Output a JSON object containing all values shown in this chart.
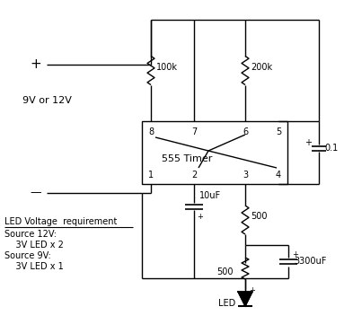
{
  "bg_color": "#ffffff",
  "line_color": "#000000",
  "fig_width": 3.93,
  "fig_height": 3.71,
  "dpi": 100,
  "pin_labels_top": [
    "8",
    "7",
    "6",
    "5"
  ],
  "pin_labels_bottom": [
    "1",
    "2",
    "3",
    "4"
  ],
  "ic_label": "555 Timer",
  "resistor_100k_label": "100k",
  "resistor_200k_label": "200k",
  "cap_01_label": "0.1",
  "cap_10uF_label": "10uF",
  "cap_3300uF_label": "3300uF",
  "res_500_1_label": "500",
  "res_500_2_label": "500",
  "led_label": "LED",
  "voltage_label": "9V or 12V",
  "plus_label": "+",
  "minus_label": "—",
  "led_voltage_title": "LED Voltage  requirement",
  "led_voltage_line1": "Source 12V:",
  "led_voltage_line2": "    3V LED x 2",
  "led_voltage_line3": "Source 9V:",
  "led_voltage_line4": "    3V LED x 1"
}
